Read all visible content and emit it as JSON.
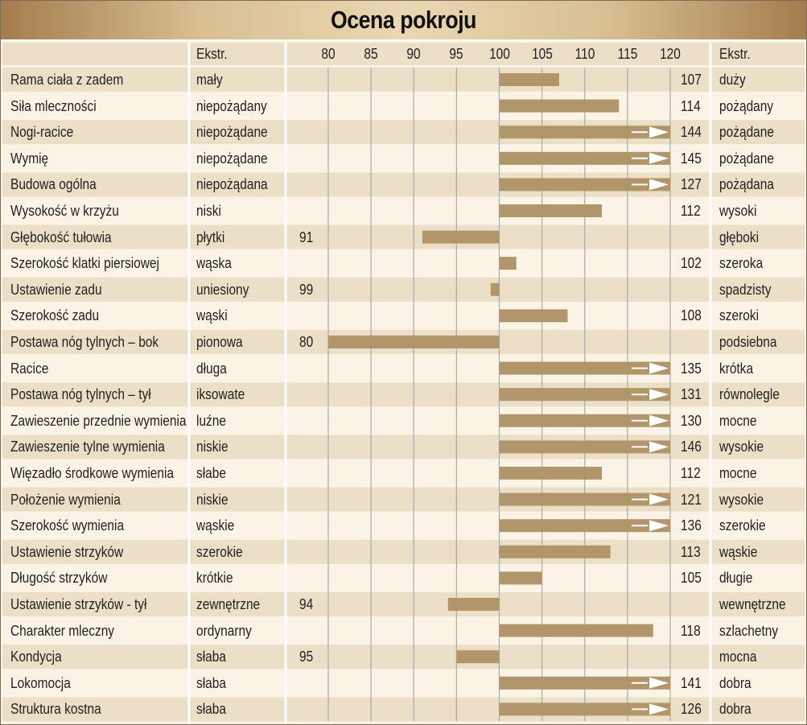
{
  "chart_data": {
    "type": "bar",
    "title": "Ocena pokroju",
    "header": {
      "left_ext": "Ekstr.",
      "right_ext": "Ekstr."
    },
    "baseline": 100,
    "xlim": [
      80,
      120
    ],
    "ticks": [
      80,
      85,
      90,
      95,
      100,
      105,
      110,
      115,
      120
    ],
    "grid": true,
    "colors": {
      "bar": "#b0966a",
      "stripe": "#ecdfc7",
      "row_alt": "#fbf3e6",
      "grid": "#aaaaaa",
      "arrow": "#ffffff"
    },
    "rows": [
      {
        "trait": "Rama ciała z zadem",
        "left": "mały",
        "right": "duży",
        "value": 107
      },
      {
        "trait": "Siła mleczności",
        "left": "niepożądany",
        "right": "pożądany",
        "value": 114
      },
      {
        "trait": "Nogi-racice",
        "left": "niepożądane",
        "right": "pożądane",
        "value": 144
      },
      {
        "trait": "Wymię",
        "left": "niepożądane",
        "right": "pożądane",
        "value": 145
      },
      {
        "trait": "Budowa ogólna",
        "left": "niepożądana",
        "right": "pożądana",
        "value": 127
      },
      {
        "trait": "Wysokość w krzyżu",
        "left": "niski",
        "right": "wysoki",
        "value": 112
      },
      {
        "trait": "Głębokość tułowia",
        "left": "płytki",
        "right": "głęboki",
        "value": 91
      },
      {
        "trait": "Szerokość klatki piersiowej",
        "left": "wąska",
        "right": "szeroka",
        "value": 102
      },
      {
        "trait": "Ustawienie zadu",
        "left": "uniesiony",
        "right": "spadzisty",
        "value": 99
      },
      {
        "trait": "Szerokość zadu",
        "left": "wąski",
        "right": "szeroki",
        "value": 108
      },
      {
        "trait": "Postawa nóg tylnych – bok",
        "left": "pionowa",
        "right": "podsiebna",
        "value": 80
      },
      {
        "trait": "Racice",
        "left": "długa",
        "right": "krótka",
        "value": 135
      },
      {
        "trait": "Postawa nóg tylnych – tył",
        "left": "iksowate",
        "right": "równolegle",
        "value": 131
      },
      {
        "trait": "Zawieszenie przednie wymienia",
        "left": "luźne",
        "right": "mocne",
        "value": 130
      },
      {
        "trait": "Zawieszenie tylne wymienia",
        "left": "niskie",
        "right": "wysokie",
        "value": 146
      },
      {
        "trait": "Więzadło środkowe wymienia",
        "left": "słabe",
        "right": "mocne",
        "value": 112
      },
      {
        "trait": "Położenie wymienia",
        "left": "niskie",
        "right": "wysokie",
        "value": 121
      },
      {
        "trait": "Szerokość wymienia",
        "left": "wąskie",
        "right": "szerokie",
        "value": 136
      },
      {
        "trait": "Ustawienie strzyków",
        "left": "szerokie",
        "right": "wąskie",
        "value": 113
      },
      {
        "trait": "Długość strzyków",
        "left": "krótkie",
        "right": "długie",
        "value": 105
      },
      {
        "trait": "Ustawienie strzyków - tył",
        "left": "zewnętrzne",
        "right": "wewnętrzne",
        "value": 94
      },
      {
        "trait": "Charakter mleczny",
        "left": "ordynarny",
        "right": "szlachetny",
        "value": 118
      },
      {
        "trait": "Kondycja",
        "left": "słaba",
        "right": "mocna",
        "value": 95
      },
      {
        "trait": "Lokomocja",
        "left": "słaba",
        "right": "dobra",
        "value": 141
      },
      {
        "trait": "Struktura kostna",
        "left": "słaba",
        "right": "dobra",
        "value": 126
      }
    ]
  }
}
